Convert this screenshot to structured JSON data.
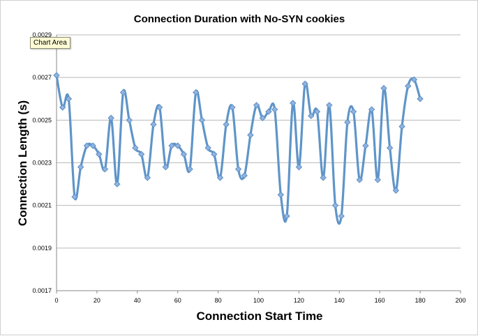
{
  "tooltip": "Chart Area",
  "chart_data": {
    "type": "line",
    "title": "Connection Duration with No-SYN cookies",
    "xlabel": "Connection Start Time",
    "ylabel": "Connection Length (s)",
    "xlim": [
      0,
      200
    ],
    "ylim": [
      0.0017,
      0.0029
    ],
    "x_ticks": [
      "0",
      "20",
      "40",
      "60",
      "80",
      "100",
      "120",
      "140",
      "160",
      "180",
      "200"
    ],
    "y_ticks": [
      "0.0017",
      "0.0019",
      "0.0021",
      "0.0023",
      "0.0025",
      "0.0027",
      "0.0029"
    ],
    "grid": "horizontal",
    "legend": "none",
    "smoothed": true,
    "colors": {
      "line": "#5f95c9",
      "marker": "#8fb4e0",
      "grid": "#b9b9b9"
    },
    "series": [
      {
        "x": [
          0,
          3,
          6,
          9,
          12,
          15,
          18,
          21,
          24,
          27,
          30,
          33,
          36,
          39,
          42,
          45,
          48,
          51,
          54,
          57,
          60,
          63,
          66,
          69,
          72,
          75,
          78,
          81,
          84,
          87,
          90,
          93,
          96,
          99,
          102,
          105,
          108,
          111,
          114,
          117,
          120,
          123,
          126,
          129,
          132,
          135,
          138,
          141,
          144,
          147,
          150,
          153,
          156,
          159,
          162,
          165,
          168,
          171,
          174,
          177,
          180
        ],
        "y": [
          0.00271,
          0.00256,
          0.0026,
          0.00214,
          0.00228,
          0.00238,
          0.00238,
          0.00234,
          0.00227,
          0.00251,
          0.0022,
          0.00263,
          0.0025,
          0.00237,
          0.00234,
          0.00223,
          0.00248,
          0.00256,
          0.00228,
          0.00238,
          0.00238,
          0.00234,
          0.00227,
          0.00263,
          0.0025,
          0.00237,
          0.00234,
          0.00223,
          0.00248,
          0.00256,
          0.00227,
          0.00224,
          0.00243,
          0.00257,
          0.00251,
          0.00254,
          0.00255,
          0.00215,
          0.00205,
          0.00258,
          0.00228,
          0.00267,
          0.00252,
          0.00254,
          0.00223,
          0.00257,
          0.0021,
          0.00205,
          0.00249,
          0.00254,
          0.00222,
          0.00238,
          0.00255,
          0.00222,
          0.00265,
          0.00237,
          0.00217,
          0.00247,
          0.00266,
          0.00269,
          0.0026
        ]
      }
    ]
  }
}
